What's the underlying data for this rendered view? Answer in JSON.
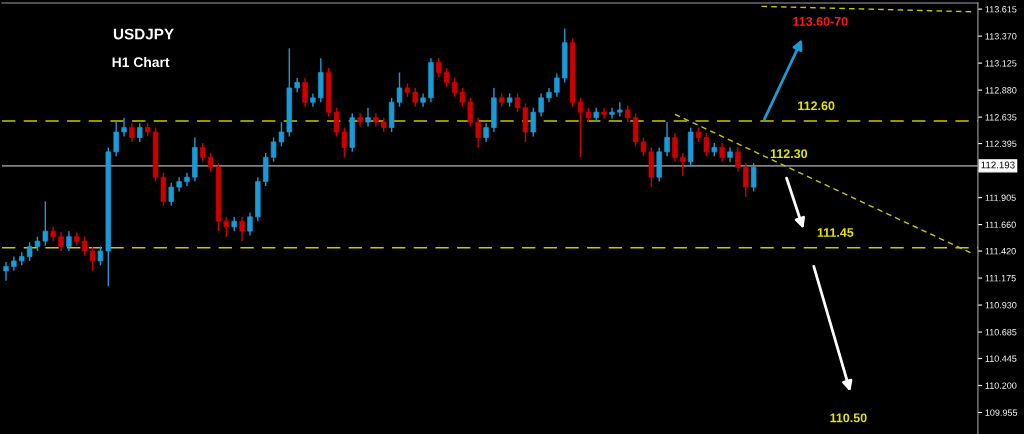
{
  "chart_data": {
    "type": "candlestick",
    "title": "USDJPY",
    "subtitle": "H1 Chart",
    "categories": [
      null,
      null,
      null,
      null,
      null,
      null,
      null,
      null,
      null,
      null,
      null,
      null,
      null,
      null,
      null,
      null,
      null,
      null,
      null,
      null,
      null,
      null,
      null,
      null,
      null,
      null,
      null,
      null,
      null,
      null,
      null,
      null,
      null,
      null,
      null,
      null,
      null,
      null,
      null,
      null,
      null,
      null,
      null,
      null,
      null,
      null,
      null,
      null,
      null,
      null,
      null,
      null,
      null,
      null,
      null,
      null,
      null,
      null,
      null,
      null,
      null,
      null,
      null,
      null,
      null,
      null,
      null,
      null,
      null,
      null,
      null,
      null,
      null,
      null,
      null,
      null,
      null,
      null,
      null,
      null,
      null,
      null,
      null,
      null,
      null,
      null,
      null,
      null,
      null,
      null,
      null,
      null,
      null,
      null,
      null,
      null,
      null,
      null,
      null,
      null,
      null,
      null,
      null,
      null,
      null,
      null,
      null,
      null,
      null,
      null,
      null,
      null,
      null,
      null,
      null,
      null,
      null,
      null,
      null,
      null,
      null,
      null,
      null,
      null
    ],
    "ohlc": [
      [
        111.24,
        111.32,
        111.15,
        111.28
      ],
      [
        111.28,
        111.37,
        111.24,
        111.33
      ],
      [
        111.33,
        111.41,
        111.29,
        111.37
      ],
      [
        111.37,
        111.5,
        111.33,
        111.46
      ],
      [
        111.46,
        111.55,
        111.42,
        111.51
      ],
      [
        111.51,
        111.87,
        111.47,
        111.6
      ],
      [
        111.6,
        111.64,
        111.51,
        111.55
      ],
      [
        111.55,
        111.59,
        111.42,
        111.46
      ],
      [
        111.46,
        111.6,
        111.42,
        111.55
      ],
      [
        111.55,
        111.59,
        111.47,
        111.51
      ],
      [
        111.51,
        111.55,
        111.38,
        111.42
      ],
      [
        111.42,
        111.46,
        111.24,
        111.33
      ],
      [
        111.33,
        111.46,
        111.29,
        111.42
      ],
      [
        111.42,
        112.36,
        111.1,
        112.32
      ],
      [
        112.32,
        112.59,
        112.28,
        112.5
      ],
      [
        112.5,
        112.63,
        112.46,
        112.54
      ],
      [
        112.54,
        112.58,
        112.41,
        112.45
      ],
      [
        112.45,
        112.58,
        112.41,
        112.54
      ],
      [
        112.54,
        112.58,
        112.46,
        112.5
      ],
      [
        112.5,
        112.54,
        112.05,
        112.09
      ],
      [
        112.09,
        112.13,
        111.83,
        111.87
      ],
      [
        111.87,
        112.04,
        111.83,
        112.0
      ],
      [
        112.0,
        112.09,
        111.96,
        112.05
      ],
      [
        112.05,
        112.13,
        112.01,
        112.09
      ],
      [
        112.09,
        112.45,
        112.05,
        112.36
      ],
      [
        112.36,
        112.4,
        112.23,
        112.27
      ],
      [
        112.27,
        112.31,
        112.14,
        112.18
      ],
      [
        112.18,
        112.22,
        111.6,
        111.69
      ],
      [
        111.69,
        111.73,
        111.55,
        111.64
      ],
      [
        111.64,
        111.73,
        111.6,
        111.69
      ],
      [
        111.69,
        111.73,
        111.51,
        111.6
      ],
      [
        111.6,
        111.77,
        111.56,
        111.73
      ],
      [
        111.73,
        112.09,
        111.69,
        112.05
      ],
      [
        112.05,
        112.31,
        112.01,
        112.27
      ],
      [
        112.27,
        112.45,
        112.23,
        112.41
      ],
      [
        112.41,
        112.59,
        112.37,
        112.5
      ],
      [
        112.5,
        113.26,
        112.46,
        112.9
      ],
      [
        112.9,
        112.99,
        112.86,
        112.95
      ],
      [
        112.95,
        112.99,
        112.73,
        112.77
      ],
      [
        112.77,
        112.85,
        112.73,
        112.81
      ],
      [
        112.81,
        113.17,
        112.77,
        113.04
      ],
      [
        113.04,
        113.08,
        112.64,
        112.68
      ],
      [
        112.68,
        112.72,
        112.46,
        112.5
      ],
      [
        112.5,
        112.54,
        112.27,
        112.36
      ],
      [
        112.36,
        112.67,
        112.32,
        112.63
      ],
      [
        112.63,
        112.67,
        112.55,
        112.59
      ],
      [
        112.59,
        112.72,
        112.55,
        112.63
      ],
      [
        112.63,
        112.67,
        112.55,
        112.59
      ],
      [
        112.59,
        112.63,
        112.5,
        112.54
      ],
      [
        112.54,
        112.81,
        112.5,
        112.77
      ],
      [
        112.77,
        113.04,
        112.73,
        112.9
      ],
      [
        112.9,
        112.94,
        112.82,
        112.86
      ],
      [
        112.86,
        112.9,
        112.73,
        112.77
      ],
      [
        112.77,
        112.85,
        112.73,
        112.81
      ],
      [
        112.81,
        113.17,
        112.77,
        113.13
      ],
      [
        113.13,
        113.17,
        113.0,
        113.04
      ],
      [
        113.04,
        113.08,
        112.91,
        112.95
      ],
      [
        112.95,
        112.99,
        112.82,
        112.86
      ],
      [
        112.86,
        112.9,
        112.73,
        112.77
      ],
      [
        112.77,
        112.81,
        112.55,
        112.59
      ],
      [
        112.59,
        112.63,
        112.36,
        112.45
      ],
      [
        112.45,
        112.58,
        112.41,
        112.54
      ],
      [
        112.54,
        112.9,
        112.5,
        112.81
      ],
      [
        112.81,
        112.85,
        112.73,
        112.77
      ],
      [
        112.77,
        112.85,
        112.73,
        112.81
      ],
      [
        112.81,
        112.85,
        112.68,
        112.72
      ],
      [
        112.72,
        112.76,
        112.41,
        112.5
      ],
      [
        112.5,
        112.72,
        112.46,
        112.68
      ],
      [
        112.68,
        112.85,
        112.64,
        112.81
      ],
      [
        112.81,
        112.9,
        112.77,
        112.86
      ],
      [
        112.86,
        113.03,
        112.82,
        112.99
      ],
      [
        112.99,
        113.44,
        112.95,
        113.31
      ],
      [
        113.31,
        113.35,
        112.73,
        112.77
      ],
      [
        112.77,
        112.81,
        112.27,
        112.68
      ],
      [
        112.68,
        112.72,
        112.59,
        112.63
      ],
      [
        112.63,
        112.72,
        112.59,
        112.68
      ],
      [
        112.68,
        112.72,
        112.62,
        112.66
      ],
      [
        112.66,
        112.72,
        112.62,
        112.68
      ],
      [
        112.68,
        112.77,
        112.64,
        112.7
      ],
      [
        112.7,
        112.74,
        112.59,
        112.63
      ],
      [
        112.63,
        112.67,
        112.37,
        112.41
      ],
      [
        112.41,
        112.45,
        112.28,
        112.32
      ],
      [
        112.32,
        112.36,
        112.0,
        112.09
      ],
      [
        112.09,
        112.36,
        112.05,
        112.32
      ],
      [
        112.32,
        112.59,
        112.28,
        112.45
      ],
      [
        112.45,
        112.49,
        112.23,
        112.27
      ],
      [
        112.27,
        112.31,
        112.1,
        112.23
      ],
      [
        112.23,
        112.54,
        112.19,
        112.5
      ],
      [
        112.5,
        112.54,
        112.41,
        112.45
      ],
      [
        112.45,
        112.49,
        112.28,
        112.32
      ],
      [
        112.32,
        112.4,
        112.28,
        112.36
      ],
      [
        112.36,
        112.4,
        112.23,
        112.27
      ],
      [
        112.27,
        112.36,
        112.23,
        112.32
      ],
      [
        112.32,
        112.36,
        112.14,
        112.18
      ],
      [
        112.18,
        112.22,
        111.91,
        112.0
      ],
      [
        112.0,
        112.22,
        111.96,
        112.18
      ],
      null,
      null,
      null,
      null,
      null,
      null,
      null,
      null,
      null,
      null,
      null,
      null,
      null,
      null,
      null,
      null,
      null,
      null,
      null,
      null,
      null,
      null,
      null,
      null,
      null,
      null,
      null,
      null
    ],
    "colors": [
      "#1a9ad6",
      "#1a9ad6",
      "#1a9ad6",
      "#1a9ad6",
      "#1a9ad6",
      "#1a9ad6",
      "#cc0000",
      "#cc0000",
      "#1a9ad6",
      "#cc0000",
      "#cc0000",
      "#cc0000",
      "#1a9ad6",
      "#1a9ad6",
      "#1a9ad6",
      "#1a9ad6",
      "#cc0000",
      "#1a9ad6",
      "#cc0000",
      "#cc0000",
      "#cc0000",
      "#1a9ad6",
      "#1a9ad6",
      "#1a9ad6",
      "#1a9ad6",
      "#cc0000",
      "#cc0000",
      "#cc0000",
      "#cc0000",
      "#1a9ad6",
      "#cc0000",
      "#1a9ad6",
      "#1a9ad6",
      "#1a9ad6",
      "#1a9ad6",
      "#1a9ad6",
      "#1a9ad6",
      "#1a9ad6",
      "#cc0000",
      "#1a9ad6",
      "#1a9ad6",
      "#cc0000",
      "#cc0000",
      "#cc0000",
      "#1a9ad6",
      "#cc0000",
      "#1a9ad6",
      "#cc0000",
      "#cc0000",
      "#1a9ad6",
      "#1a9ad6",
      "#cc0000",
      "#cc0000",
      "#1a9ad6",
      "#1a9ad6",
      "#cc0000",
      "#cc0000",
      "#cc0000",
      "#cc0000",
      "#cc0000",
      "#cc0000",
      "#1a9ad6",
      "#1a9ad6",
      "#cc0000",
      "#1a9ad6",
      "#cc0000",
      "#cc0000",
      "#1a9ad6",
      "#1a9ad6",
      "#1a9ad6",
      "#1a9ad6",
      "#1a9ad6",
      "#cc0000",
      "#cc0000",
      "#cc0000",
      "#1a9ad6",
      "#cc0000",
      "#1a9ad6",
      "#1a9ad6",
      "#cc0000",
      "#cc0000",
      "#cc0000",
      "#cc0000",
      "#1a9ad6",
      "#1a9ad6",
      "#cc0000",
      "#cc0000",
      "#1a9ad6",
      "#cc0000",
      "#cc0000",
      "#1a9ad6",
      "#cc0000",
      "#1a9ad6",
      "#cc0000",
      "#cc0000",
      "#1a9ad6",
      null,
      null,
      null,
      null,
      null,
      null,
      null,
      null,
      null,
      null,
      null,
      null,
      null,
      null,
      null,
      null,
      null,
      null,
      null,
      null,
      null,
      null,
      null,
      null,
      null,
      null,
      null,
      null
    ],
    "series": [
      {
        "type": "line",
        "values": [
          null,
          null,
          null,
          null,
          null,
          null,
          null,
          null,
          null,
          null,
          null,
          null,
          null,
          null,
          null,
          null,
          null,
          null,
          null,
          null,
          null,
          null,
          null,
          null,
          null,
          null,
          null,
          null,
          null,
          null,
          null,
          null,
          null,
          null,
          null,
          null,
          null,
          null,
          null,
          null,
          null,
          null,
          null,
          null,
          null,
          null,
          null,
          null,
          null,
          null,
          null,
          null,
          null,
          null,
          null,
          null,
          null,
          null,
          null,
          null,
          null,
          null,
          null,
          null,
          null,
          null,
          null,
          null,
          null,
          null,
          null,
          null,
          null,
          null,
          null,
          null,
          null,
          null,
          null,
          null,
          null,
          null,
          null,
          null,
          null,
          112.66,
          null,
          null,
          null,
          null,
          null,
          null,
          null,
          null,
          null,
          null,
          null,
          null,
          null,
          null,
          null,
          null,
          null,
          null,
          null,
          null,
          null,
          null,
          null,
          null,
          null,
          null,
          null,
          null,
          null,
          null,
          null,
          null,
          null,
          null,
          null,
          null,
          null,
          111.39
        ],
        "color": "#c8c800",
        "line_style": "dashed"
      },
      {
        "type": "line",
        "values": [
          null,
          null,
          null,
          null,
          null,
          null,
          null,
          null,
          null,
          null,
          null,
          null,
          null,
          null,
          null,
          null,
          null,
          null,
          null,
          null,
          null,
          null,
          null,
          null,
          null,
          null,
          null,
          null,
          null,
          null,
          null,
          null,
          null,
          null,
          null,
          null,
          null,
          null,
          null,
          null,
          null,
          null,
          null,
          null,
          null,
          null,
          null,
          null,
          null,
          null,
          null,
          null,
          null,
          null,
          null,
          null,
          null,
          null,
          null,
          null,
          null,
          null,
          null,
          null,
          null,
          null,
          null,
          null,
          null,
          null,
          null,
          null,
          null,
          null,
          null,
          null,
          null,
          null,
          null,
          null,
          null,
          null,
          null,
          null,
          null,
          null,
          null,
          null,
          null,
          null,
          null,
          null,
          null,
          null,
          null,
          null,
          113.64,
          null,
          null,
          null,
          null,
          null,
          null,
          null,
          null,
          null,
          null,
          null,
          null,
          null,
          null,
          null,
          null,
          null,
          null,
          null,
          null,
          null,
          null,
          null,
          null,
          null,
          null,
          113.59
        ],
        "color": "#c8c800",
        "line_style": "dashed"
      }
    ],
    "ylim": [
      109.76,
      113.67
    ],
    "yticks": [
      113.615,
      {
        "value": 113.37,
        "label": "113.370"
      },
      113.125,
      {
        "value": 112.88,
        "label": "112.880"
      },
      112.635,
      112.395,
      {
        "value": 112.15,
        "label": null
      },
      111.905,
      {
        "value": 111.66,
        "label": "111.660"
      },
      {
        "value": 111.42,
        "label": "111.420"
      },
      111.175,
      {
        "value": 110.93,
        "label": "110.930"
      },
      110.685,
      110.445,
      {
        "value": 110.2,
        "label": "110.200"
      },
      109.955
    ],
    "ref_lines": [
      {
        "axis": "y",
        "value": 112.6,
        "label": "112.60",
        "color": "#c8c800",
        "line_style": "dashed"
      },
      {
        "axis": "y",
        "value": 111.45,
        "label": "111.45",
        "color": "#c8c800",
        "line_style": "dashed"
      },
      {
        "axis": "y",
        "value": 112.193,
        "label": "112.193",
        "color": "#808080",
        "line_style": "solid"
      }
    ],
    "annotations": [
      "113.60-70",
      "112.30",
      "110.50"
    ],
    "grid": false
  }
}
